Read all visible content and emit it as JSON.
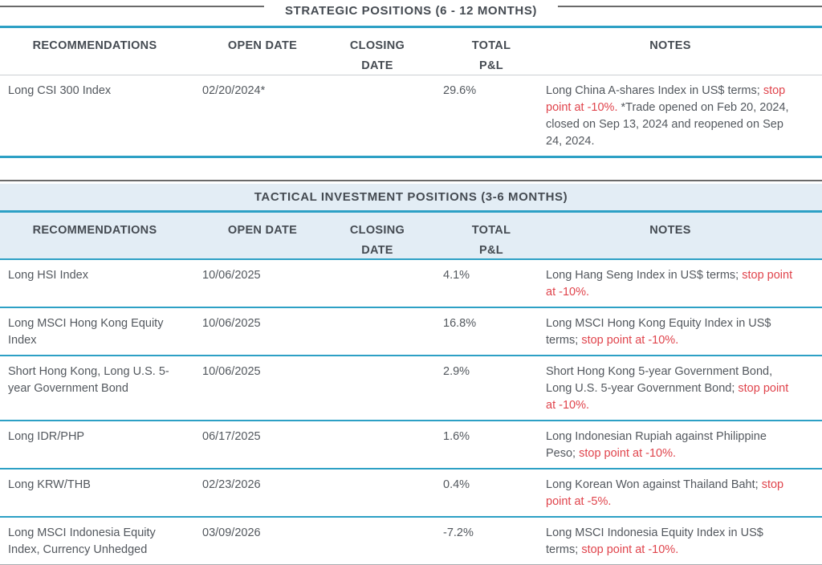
{
  "colors": {
    "teal_rule": "#2da0c5",
    "band_blue": "#e3edf5",
    "note_red": "#e0444c",
    "body_text": "#53585e"
  },
  "tables": [
    {
      "title": "STRATEGIC POSITIONS (6 - 12 MONTHS)",
      "columns": [
        "RECOMMENDATIONS",
        "OPEN DATE",
        "CLOSING\nDATE",
        "TOTAL\nP&L",
        "NOTES"
      ],
      "rows": [
        {
          "recommendation": "Long CSI 300 Index",
          "open_date": "02/20/2024*",
          "closing_date": "",
          "total_pnl": "29.6%",
          "notes": [
            {
              "text": "Long China A-shares Index in US$ terms; ",
              "cls": ""
            },
            {
              "text": "stop point at -10%.",
              "cls": "red"
            },
            {
              "text": " *Trade opened on Feb 20, 2024, closed on Sep 13, 2024 and reopened on Sep 24, 2024.",
              "cls": ""
            }
          ]
        }
      ]
    },
    {
      "title": "TACTICAL INVESTMENT POSITIONS (3-6 MONTHS)",
      "columns": [
        "RECOMMENDATIONS",
        "OPEN DATE",
        "CLOSING\nDATE",
        "TOTAL\nP&L",
        "NOTES"
      ],
      "rows": [
        {
          "recommendation": "Long HSI Index",
          "open_date": "10/06/2025",
          "closing_date": "",
          "total_pnl": "4.1%",
          "notes": [
            {
              "text": "Long Hang Seng Index in US$ terms; ",
              "cls": ""
            },
            {
              "text": "stop point at -10%.",
              "cls": "red"
            },
            {
              "text": "",
              "cls": ""
            }
          ]
        },
        {
          "recommendation": "Long MSCI Hong Kong Equity Index",
          "open_date": "10/06/2025",
          "closing_date": "",
          "total_pnl": "16.8%",
          "notes": [
            {
              "text": "Long MSCI Hong Kong Equity Index in US$ terms; ",
              "cls": ""
            },
            {
              "text": "stop point at -10%.",
              "cls": "red"
            },
            {
              "text": "",
              "cls": ""
            }
          ]
        },
        {
          "recommendation": "Short Hong Kong, Long U.S. 5-year Government Bond",
          "open_date": "10/06/2025",
          "closing_date": "",
          "total_pnl": "2.9%",
          "notes": [
            {
              "text": "Short Hong Kong 5-year Government Bond, Long U.S. 5-year Government Bond; ",
              "cls": ""
            },
            {
              "text": "stop point at -10%.",
              "cls": "red"
            },
            {
              "text": "",
              "cls": ""
            }
          ]
        },
        {
          "recommendation": "Long IDR/PHP",
          "open_date": "06/17/2025",
          "closing_date": "",
          "total_pnl": "1.6%",
          "notes": [
            {
              "text": "Long Indonesian Rupiah against Philippine Peso; ",
              "cls": ""
            },
            {
              "text": "stop point at -10%.",
              "cls": "red"
            },
            {
              "text": "",
              "cls": ""
            }
          ]
        },
        {
          "recommendation": "Long KRW/THB",
          "open_date": "02/23/2026",
          "closing_date": "",
          "total_pnl": "0.4%",
          "notes": [
            {
              "text": "Long Korean Won against Thailand Baht; ",
              "cls": ""
            },
            {
              "text": "stop point at -5%.",
              "cls": "red"
            },
            {
              "text": "",
              "cls": ""
            }
          ]
        },
        {
          "recommendation": "Long MSCI Indonesia Equity Index, Currency Unhedged",
          "open_date": "03/09/2026",
          "closing_date": "",
          "total_pnl": "-7.2%",
          "notes": [
            {
              "text": "Long MSCI Indonesia Equity Index in US$ terms; ",
              "cls": ""
            },
            {
              "text": "stop point at -10%.",
              "cls": "red"
            },
            {
              "text": "",
              "cls": ""
            }
          ]
        }
      ]
    }
  ]
}
